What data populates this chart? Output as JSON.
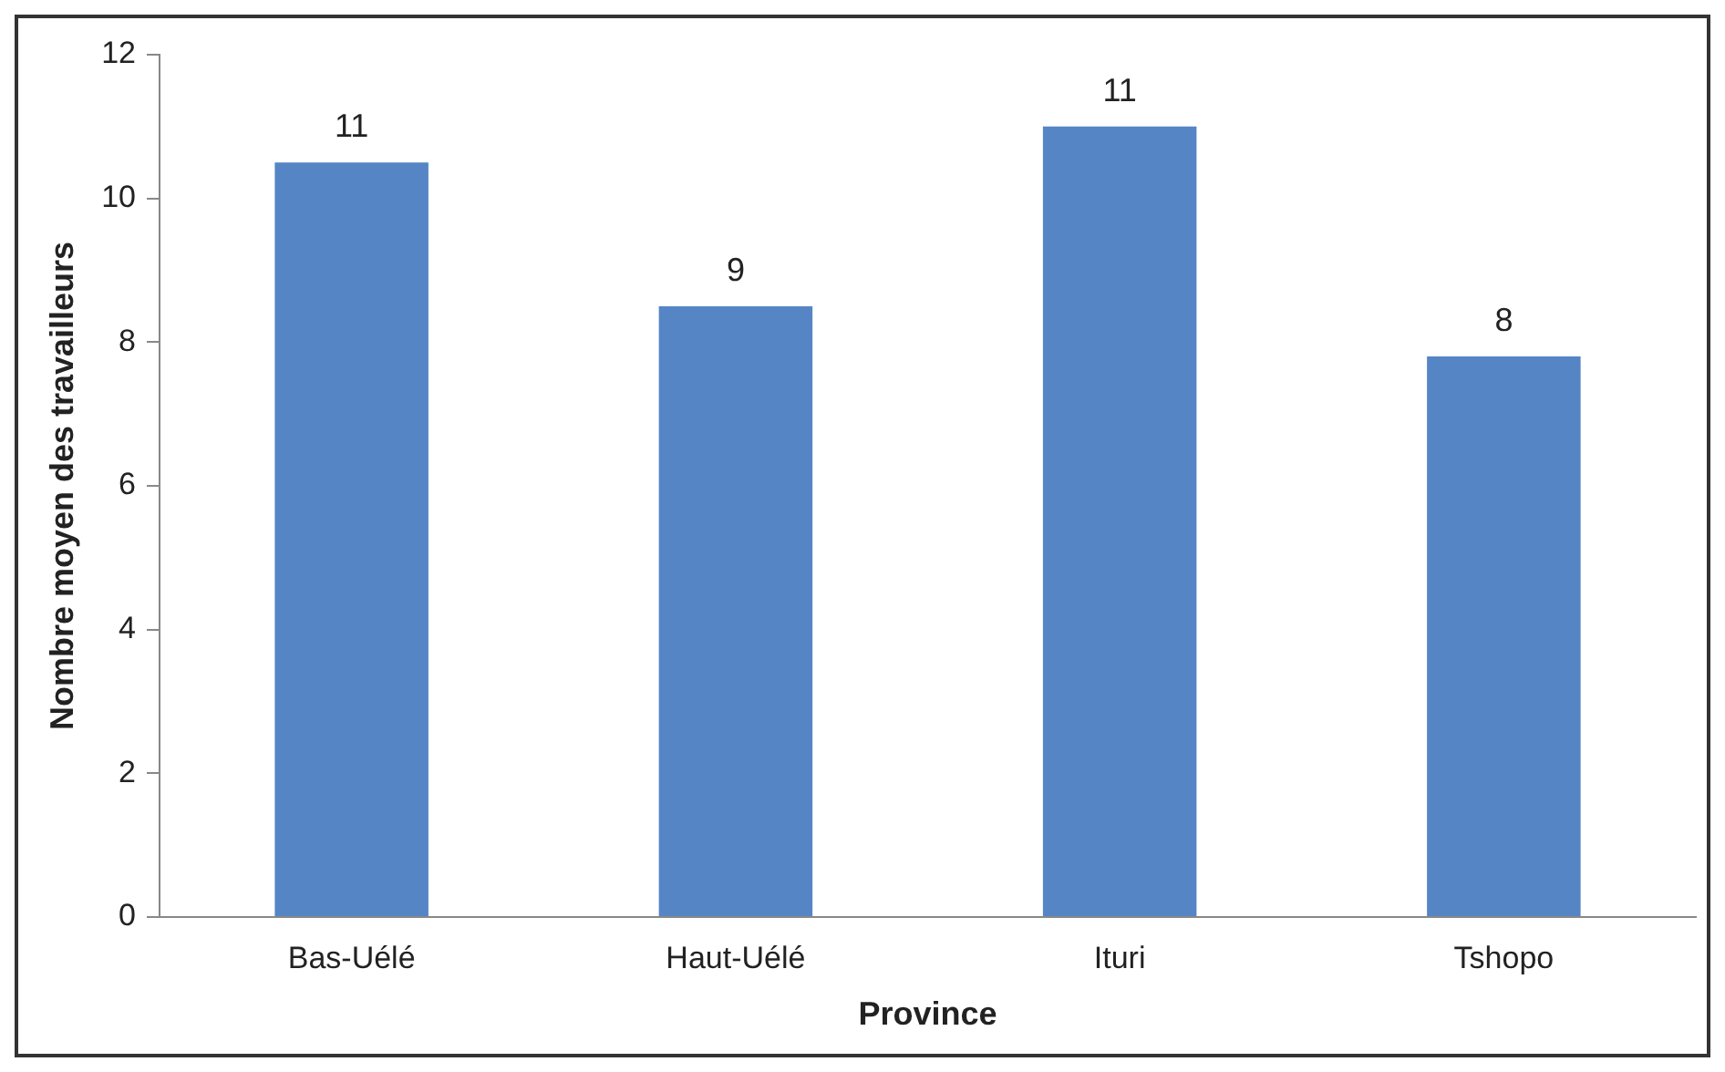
{
  "chart_data": {
    "type": "bar",
    "xlabel": "Province",
    "ylabel": "Nombre moyen des travailleurs",
    "categories": [
      "Bas-Uélé",
      "Haut-Uélé",
      "Ituri",
      "Tshopo"
    ],
    "values": [
      10.5,
      8.5,
      11,
      7.8
    ],
    "value_labels": [
      "11",
      "9",
      "11",
      "8"
    ],
    "color": "#5585c5",
    "ylim": [
      0,
      12
    ],
    "yticks": [
      0,
      2,
      4,
      6,
      8,
      10,
      12
    ],
    "grid": false,
    "legend": false
  }
}
